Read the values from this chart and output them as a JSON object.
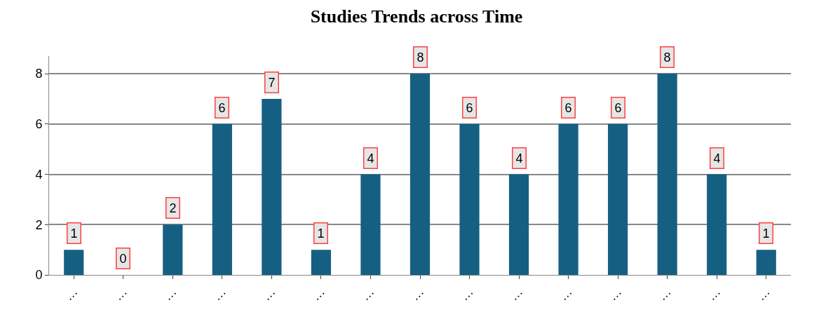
{
  "chart_data": {
    "type": "bar",
    "title": "Studies Trends across Time",
    "categories": [
      "…",
      "…",
      "…",
      "…",
      "…",
      "…",
      "…",
      "…",
      "…",
      "…",
      "…",
      "…",
      "…",
      "…",
      "…"
    ],
    "values": [
      1,
      0,
      2,
      6,
      7,
      1,
      4,
      8,
      6,
      4,
      6,
      6,
      8,
      4,
      1
    ],
    "color": "#156082",
    "ylim": [
      0,
      8.7
    ],
    "yticks": [
      0,
      2,
      4,
      6,
      8
    ],
    "grid": "y",
    "data_labels": true
  }
}
